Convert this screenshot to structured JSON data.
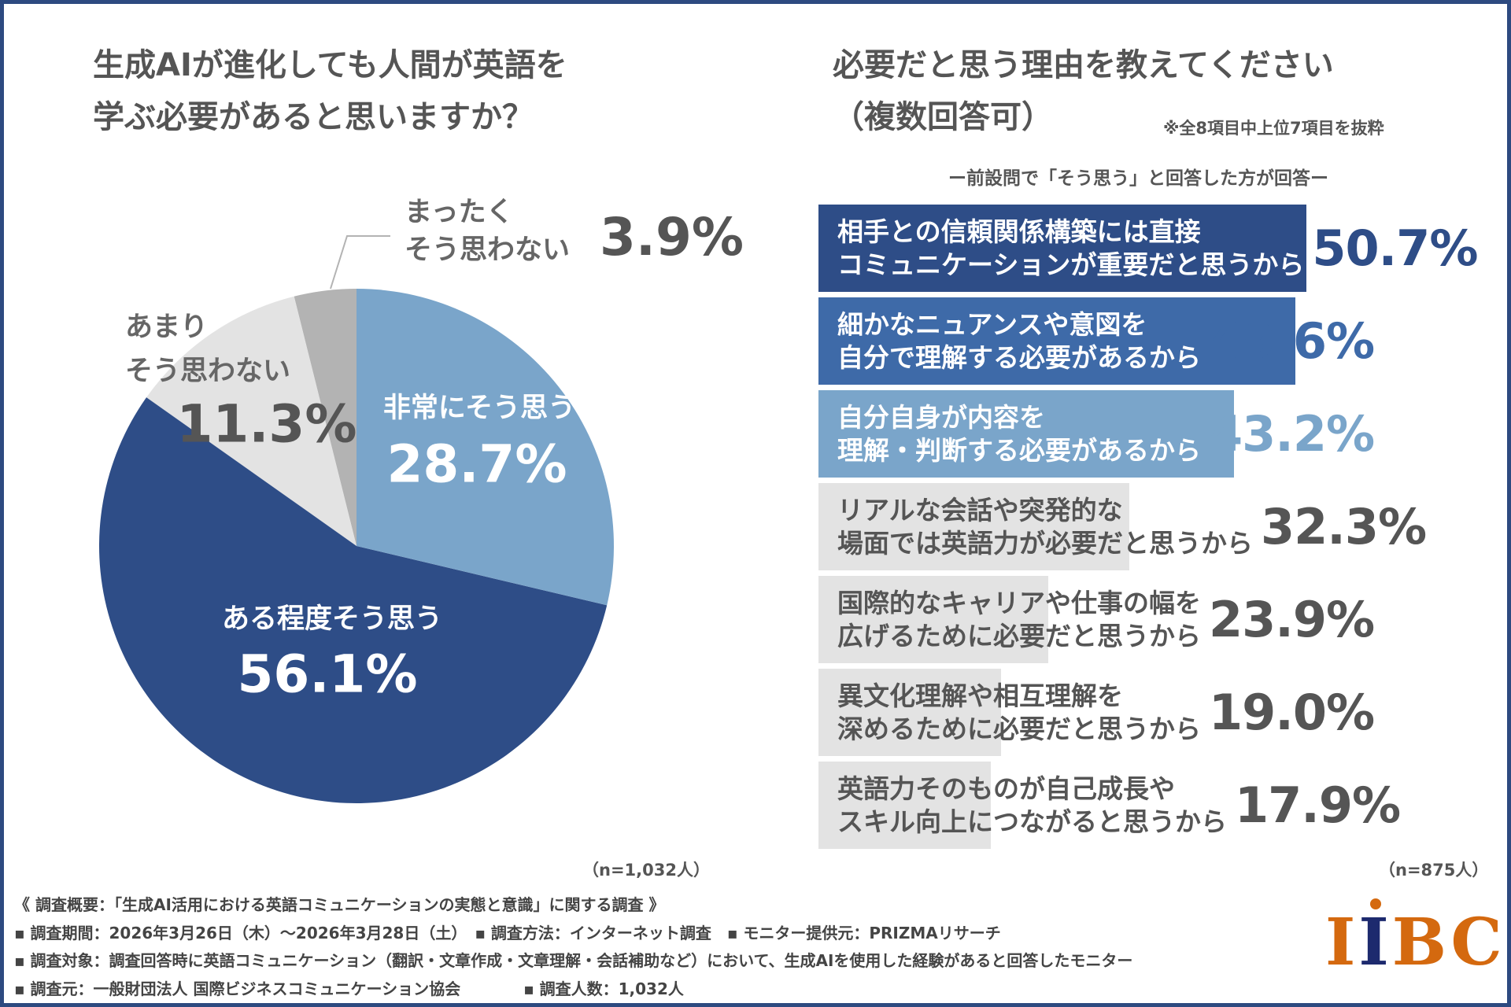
{
  "left": {
    "title_lines": [
      "生成AIが進化しても人間が英語を",
      "学ぶ必要があると思いますか？"
    ],
    "n_label": "（n=1,032人）"
  },
  "right": {
    "title_lines": [
      "必要だと思う理由を教えてください",
      "（複数回答可）"
    ],
    "note": "※全8項目中上位7項目を抜粋",
    "subheading": "ー前設問で「そう思う」と回答した方が回答ー",
    "n_label": "（n=875人）"
  },
  "chart_data": [
    {
      "type": "pie",
      "start": "top",
      "direction": "clockwise",
      "slices": [
        {
          "label": "非常にそう思う",
          "value": 28.7,
          "value_label": "28.7%",
          "color": "#7aa5ca"
        },
        {
          "label": "ある程度そう思う",
          "value": 56.1,
          "value_label": "56.1%",
          "color": "#2e4d87"
        },
        {
          "label_lines": [
            "あまり",
            "そう思わない"
          ],
          "value": 11.3,
          "value_label": "11.3%",
          "color": "#e3e3e3"
        },
        {
          "label_lines": [
            "まったく",
            "そう思わない"
          ],
          "value": 3.9,
          "value_label": "3.9%",
          "color": "#b3b3b3"
        }
      ]
    },
    {
      "type": "bar",
      "orientation": "horizontal",
      "xlim": [
        0,
        100
      ],
      "bars": [
        {
          "label_lines": [
            "相手との信頼関係構築には直接",
            "コミュニケーションが重要だと思うから"
          ],
          "value": 50.7,
          "value_label": "50.7%",
          "color": "#2e4d87",
          "text_color": "#ffffff",
          "value_color": "#2e4d87"
        },
        {
          "label_lines": [
            "細かなニュアンスや意図を",
            "自分で理解する必要があるから"
          ],
          "value": 49.6,
          "value_label": "49.6%",
          "color": "#3e6aa8",
          "text_color": "#ffffff",
          "value_color": "#3e6aa8"
        },
        {
          "label_lines": [
            "自分自身が内容を",
            "理解・判断する必要があるから"
          ],
          "value": 43.2,
          "value_label": "43.2%",
          "color": "#7aa5ca",
          "text_color": "#ffffff",
          "value_color": "#7aa5ca"
        },
        {
          "label_lines": [
            "リアルな会話や突発的な",
            "場面では英語力が必要だと思うから"
          ],
          "value": 32.3,
          "value_label": "32.3%",
          "color": "#e3e3e3",
          "text_color": "#555555",
          "value_color": "#555555"
        },
        {
          "label_lines": [
            "国際的なキャリアや仕事の幅を",
            "広げるために必要だと思うから"
          ],
          "value": 23.9,
          "value_label": "23.9%",
          "color": "#e3e3e3",
          "text_color": "#555555",
          "value_color": "#555555"
        },
        {
          "label_lines": [
            "異文化理解や相互理解を",
            "深めるために必要だと思うから"
          ],
          "value": 19.0,
          "value_label": "19.0%",
          "color": "#e3e3e3",
          "text_color": "#555555",
          "value_color": "#555555"
        },
        {
          "label_lines": [
            "英語力そのものが自己成長や",
            "スキル向上につながると思うから"
          ],
          "value": 17.9,
          "value_label": "17.9%",
          "color": "#e3e3e3",
          "text_color": "#555555",
          "value_color": "#555555"
        }
      ]
    }
  ],
  "footer": {
    "lines": [
      "《 調査概要：「生成AI活用における英語コミュニケーションの実態と意識」に関する調査 》",
      "▪ 調査期間：2026年3月26日（木）～2026年3月28日（土）　▪ 調査方法：インターネット調査　▪ モニター提供元：PRIZMAリサーチ",
      "▪ 調査対象：調査回答時に英語コミュニケーション（翻訳・文章作成・文章理解・会話補助など）において、生成AIを使用した経験があると回答したモニター",
      "▪ 調査元：一般財団法人 国際ビジネスコミュニケーション協会　　　　▪ 調査人数：1,032人"
    ],
    "logo_text": "IIBC"
  }
}
